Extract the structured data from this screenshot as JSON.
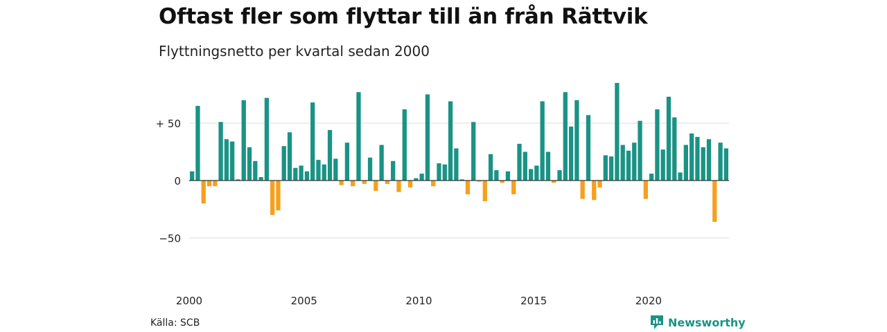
{
  "header": {
    "title": "Oftast fler som flyttar till än från Rättvik",
    "subtitle": "Flyttningsnetto per kvartal sedan 2000"
  },
  "footer": {
    "source": "Källa: SCB",
    "brand": "Newsworthy",
    "brand_icon": "newsworthy-logo-icon"
  },
  "colors": {
    "positive": "#1a9385",
    "negative": "#f5a01e",
    "grid": "#dddddd",
    "baseline": "#333333",
    "brand": "#1a9385"
  },
  "chart_data": {
    "type": "bar",
    "title": "Oftast fler som flyttar till än från Rättvik",
    "subtitle": "Flyttningsnetto per kvartal sedan 2000",
    "xlabel": "",
    "ylabel": "",
    "x_ticks": [
      2000,
      2005,
      2010,
      2015,
      2020
    ],
    "y_ticks": [
      {
        "value": 50,
        "label": "+ 50"
      },
      {
        "value": 0,
        "label": "0"
      },
      {
        "value": -50,
        "label": "−50"
      }
    ],
    "ylim": [
      -88,
      90
    ],
    "grid": true,
    "start_year": 2000,
    "series": [
      {
        "values": [
          8,
          65,
          -20,
          -5,
          -5,
          51,
          36,
          34,
          1,
          70,
          29,
          17,
          3,
          72,
          -30,
          -26,
          30,
          42,
          11,
          13,
          8,
          68,
          18,
          14,
          44,
          19,
          -4,
          33,
          -5,
          77,
          -3,
          20,
          -9,
          31,
          -3,
          17,
          -10,
          62,
          -6,
          2,
          6,
          75,
          -5,
          15,
          14,
          69,
          28,
          1,
          -12,
          51,
          -1,
          -18,
          23,
          9,
          -2,
          8,
          -12,
          32,
          25,
          10,
          13,
          69,
          25,
          -2,
          9,
          77,
          47,
          70,
          -16,
          57,
          -17,
          -6,
          22,
          21,
          85,
          31,
          26,
          33,
          52,
          -16,
          6,
          62,
          27,
          73,
          55,
          7,
          31,
          41,
          38,
          29,
          36,
          -36,
          33,
          28
        ]
      }
    ]
  }
}
